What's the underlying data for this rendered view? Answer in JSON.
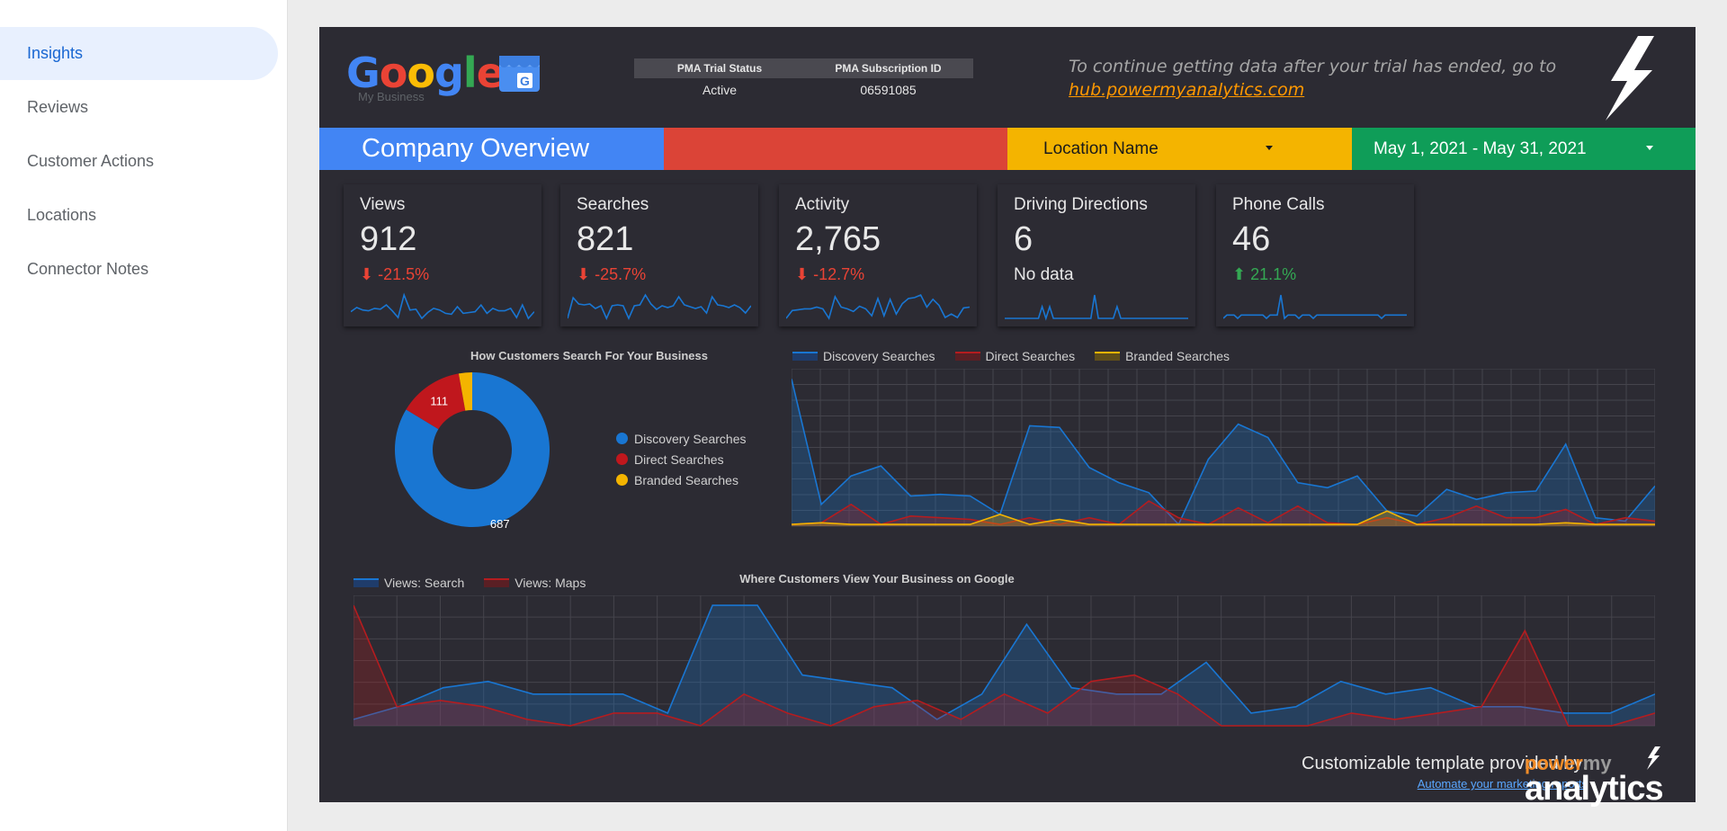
{
  "sidebar": {
    "items": [
      {
        "label": "Insights",
        "active": true
      },
      {
        "label": "Reviews",
        "active": false
      },
      {
        "label": "Customer Actions",
        "active": false
      },
      {
        "label": "Locations",
        "active": false
      },
      {
        "label": "Connector Notes",
        "active": false
      }
    ]
  },
  "header": {
    "logo_text": "Google",
    "logo_sub": "My Business",
    "status_table": {
      "col1_header": "PMA Trial Status",
      "col2_header": "PMA Subscription ID",
      "col1_value": "Active",
      "col2_value": "06591085"
    },
    "notice_text": "To continue getting data after your trial has ended, go to",
    "notice_link": "hub.powermyanalytics.com"
  },
  "band": {
    "title": "Company Overview",
    "location_dropdown": "Location Name",
    "date_dropdown": "May 1, 2021 - May 31, 2021",
    "colors": {
      "blue": "#4285f4",
      "red": "#db4437",
      "yellow": "#f4b400",
      "green": "#0f9d58"
    }
  },
  "scorecards": [
    {
      "title": "Views",
      "value": "912",
      "delta": "-21.5%",
      "direction": "down",
      "no_data": "",
      "spark": [
        10,
        15,
        12,
        11,
        14,
        13,
        18,
        11,
        3,
        30,
        12,
        13,
        2,
        9,
        14,
        12,
        8,
        7,
        16,
        8,
        9,
        10,
        18,
        8,
        14,
        11,
        11,
        14,
        3,
        18,
        2,
        10
      ]
    },
    {
      "title": "Searches",
      "value": "821",
      "delta": "-25.7%",
      "direction": "down",
      "no_data": "",
      "spark": [
        2,
        25,
        18,
        17,
        18,
        13,
        16,
        2,
        16,
        17,
        16,
        2,
        16,
        17,
        28,
        18,
        12,
        16,
        14,
        16,
        26,
        17,
        15,
        13,
        15,
        8,
        26,
        17,
        16,
        14,
        17,
        14,
        8,
        16
      ]
    },
    {
      "title": "Activity",
      "value": "2,765",
      "delta": "-12.7%",
      "direction": "down",
      "no_data": "",
      "spark": [
        3,
        12,
        13,
        14,
        14,
        16,
        14,
        3,
        28,
        16,
        14,
        11,
        17,
        14,
        6,
        26,
        6,
        25,
        8,
        20,
        26,
        27,
        30,
        16,
        25,
        18,
        4,
        8,
        4,
        15,
        16
      ]
    },
    {
      "title": "Driving Directions",
      "value": "6",
      "delta": "",
      "direction": "none",
      "no_data": "No data",
      "spark": [
        0,
        0,
        0,
        0,
        0,
        0,
        0,
        0,
        0,
        0,
        1,
        0,
        1,
        0,
        0,
        0,
        0,
        0,
        0,
        0,
        0,
        0,
        0,
        0,
        2,
        0,
        0,
        0,
        0,
        0,
        1,
        0,
        0,
        0,
        0,
        0,
        0,
        0,
        0,
        0,
        0,
        0,
        0,
        0,
        0,
        0,
        0,
        0,
        0,
        0
      ]
    },
    {
      "title": "Phone Calls",
      "value": "46",
      "delta": "21.1%",
      "direction": "up",
      "no_data": "",
      "spark": [
        0,
        1,
        1,
        1,
        0,
        1,
        1,
        1,
        1,
        1,
        1,
        1,
        0,
        1,
        1,
        1,
        7,
        0,
        1,
        1,
        1,
        0,
        1,
        1,
        1,
        0,
        1,
        1,
        1,
        1,
        1,
        1,
        1,
        1,
        1,
        1,
        1,
        1,
        1,
        1,
        1,
        1,
        1,
        1,
        0,
        1,
        1,
        1,
        1,
        1,
        1,
        1
      ]
    }
  ],
  "donut": {
    "title": "How Customers Search For Your Business",
    "slices": [
      {
        "name": "Discovery Searches",
        "value": 687,
        "color": "#1976d2",
        "label": "687"
      },
      {
        "name": "Direct Searches",
        "value": 111,
        "color": "#c0171d",
        "label": "111"
      },
      {
        "name": "Branded Searches",
        "value": 23,
        "color": "#f4b400",
        "label": ""
      }
    ]
  },
  "chart_data": [
    {
      "type": "area",
      "title": "",
      "series": [
        {
          "name": "Discovery Searches",
          "color": "#1976d2",
          "values": [
            88,
            13,
            30,
            36,
            18,
            19,
            18,
            7,
            60,
            59,
            35,
            26,
            20,
            1,
            40,
            61,
            53,
            26,
            23,
            30,
            9,
            6,
            22,
            16,
            20,
            21,
            49,
            5,
            3,
            24
          ]
        },
        {
          "name": "Direct Searches",
          "color": "#b51c1f",
          "values": [
            1,
            2,
            13,
            1,
            6,
            5,
            4,
            1,
            5,
            1,
            5,
            1,
            15,
            5,
            1,
            11,
            2,
            12,
            2,
            1,
            5,
            1,
            5,
            12,
            5,
            5,
            10,
            1,
            5,
            3
          ]
        },
        {
          "name": "Branded Searches",
          "color": "#f4b400",
          "values": [
            1,
            2,
            1,
            1,
            1,
            1,
            1,
            7,
            1,
            4,
            1,
            1,
            1,
            1,
            1,
            1,
            1,
            1,
            1,
            1,
            9,
            1,
            1,
            1,
            1,
            1,
            2,
            1,
            1,
            1
          ]
        }
      ]
    },
    {
      "type": "area",
      "title": "Where Customers View Your Business on Google",
      "series": [
        {
          "name": "Views: Search",
          "color": "#1976d2",
          "values": [
            1,
            3,
            6,
            7,
            5,
            5,
            5,
            2,
            19,
            19,
            8,
            7,
            6,
            1,
            5,
            16,
            6,
            5,
            5,
            10,
            2,
            3,
            7,
            5,
            6,
            3,
            3,
            2,
            2,
            5
          ]
        },
        {
          "name": "Views: Maps",
          "color": "#b51c1f",
          "values": [
            19,
            3,
            4,
            3,
            1,
            0,
            2,
            2,
            0,
            5,
            2,
            0,
            3,
            4,
            1,
            5,
            2,
            7,
            8,
            5,
            0,
            0,
            0,
            2,
            1,
            2,
            3,
            15,
            0,
            0,
            2
          ]
        }
      ]
    }
  ],
  "footer": {
    "text": "Customizable template provided by:",
    "link": "Automate your marketing reports",
    "logo_power": "power",
    "logo_my": "my",
    "logo_analytics": "analytics"
  }
}
